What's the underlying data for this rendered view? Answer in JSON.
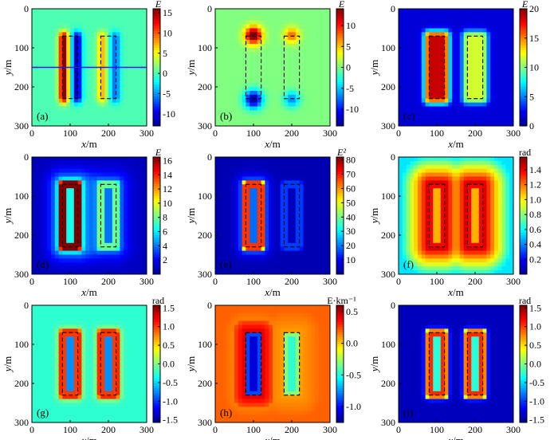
{
  "figure": {
    "colors": {
      "jet": [
        "#00008f",
        "#0000ff",
        "#0080ff",
        "#00ffff",
        "#80ff80",
        "#ffff00",
        "#ff8000",
        "#ff0000",
        "#800000"
      ],
      "frame": "#000000",
      "profile_line": "#1a1aff"
    }
  },
  "chart_data": [
    {
      "type": "heatmap",
      "panel": "a",
      "tag": "(a)",
      "field": "E",
      "xlabel_main": "x",
      "xlabel_unit": "/m",
      "ylabel_main": "y",
      "ylabel_unit": "/m",
      "xlim": [
        0,
        300
      ],
      "ylim": [
        0,
        300
      ],
      "y_inverted": true,
      "xticks": [
        0,
        100,
        200,
        300
      ],
      "yticks": [
        0,
        100,
        200,
        300
      ],
      "colorbar": {
        "title": "E",
        "range": [
          -13,
          16
        ],
        "ticks": [
          15,
          10,
          5,
          0,
          -5,
          -10
        ]
      },
      "bodies": [
        {
          "x": [
            80,
            120
          ],
          "y": [
            70,
            230
          ],
          "outline": "dashed"
        },
        {
          "x": [
            180,
            220
          ],
          "y": [
            70,
            230
          ],
          "outline": "dashed"
        }
      ],
      "profile_line_y": 150
    },
    {
      "type": "heatmap",
      "panel": "b",
      "tag": "(b)",
      "field": "E",
      "xlabel_main": "x",
      "xlabel_unit": "/m",
      "ylabel_main": "y",
      "ylabel_unit": "/m",
      "xlim": [
        0,
        300
      ],
      "ylim": [
        0,
        300
      ],
      "y_inverted": true,
      "xticks": [
        0,
        100,
        200,
        300
      ],
      "yticks": [
        0,
        100,
        200,
        300
      ],
      "colorbar": {
        "title": "E",
        "range": [
          -14,
          14
        ],
        "ticks": [
          10,
          5,
          0,
          -5,
          -10
        ]
      },
      "bodies": [
        {
          "x": [
            80,
            120
          ],
          "y": [
            70,
            230
          ],
          "outline": "dashed"
        },
        {
          "x": [
            180,
            220
          ],
          "y": [
            70,
            230
          ],
          "outline": "dashed"
        }
      ]
    },
    {
      "type": "heatmap",
      "panel": "c",
      "tag": "(c)",
      "field": "E",
      "xlabel_main": "x",
      "xlabel_unit": "/m",
      "ylabel_main": "y",
      "ylabel_unit": "/m",
      "xlim": [
        0,
        300
      ],
      "ylim": [
        0,
        300
      ],
      "y_inverted": true,
      "xticks": [
        0,
        100,
        200,
        300
      ],
      "yticks": [
        0,
        100,
        200,
        300
      ],
      "colorbar": {
        "title": "E",
        "range": [
          0,
          20
        ],
        "ticks": [
          20,
          15,
          10,
          5,
          0
        ]
      },
      "bodies": [
        {
          "x": [
            80,
            120
          ],
          "y": [
            70,
            230
          ],
          "outline": "dashed"
        },
        {
          "x": [
            180,
            220
          ],
          "y": [
            70,
            230
          ],
          "outline": "dashed"
        }
      ]
    },
    {
      "type": "heatmap",
      "panel": "d",
      "tag": "(d)",
      "field": "E",
      "xlabel_main": "x",
      "xlabel_unit": "/m",
      "ylabel_main": "y",
      "ylabel_unit": "/m",
      "xlim": [
        0,
        300
      ],
      "ylim": [
        0,
        300
      ],
      "y_inverted": true,
      "xticks": [
        0,
        100,
        200,
        300
      ],
      "yticks": [
        0,
        100,
        200,
        300
      ],
      "colorbar": {
        "title": "E",
        "range": [
          0,
          16.5
        ],
        "ticks": [
          16,
          14,
          12,
          10,
          8,
          6,
          4,
          2
        ]
      },
      "bodies": [
        {
          "x": [
            80,
            120
          ],
          "y": [
            70,
            230
          ],
          "outline": "dashed"
        },
        {
          "x": [
            180,
            220
          ],
          "y": [
            70,
            230
          ],
          "outline": "dashed"
        }
      ]
    },
    {
      "type": "heatmap",
      "panel": "e",
      "tag": "(e)",
      "field": "E²",
      "xlabel_main": "x",
      "xlabel_unit": "/m",
      "ylabel_main": "y",
      "ylabel_unit": "/m",
      "xlim": [
        0,
        300
      ],
      "ylim": [
        0,
        300
      ],
      "y_inverted": true,
      "xticks": [
        0,
        100,
        200,
        300
      ],
      "yticks": [
        0,
        100,
        200,
        300
      ],
      "colorbar": {
        "title": "E²",
        "range": [
          0,
          82
        ],
        "ticks": [
          80,
          70,
          60,
          50,
          40,
          30,
          20,
          10
        ]
      },
      "bodies": [
        {
          "x": [
            80,
            120
          ],
          "y": [
            70,
            230
          ],
          "outline": "dashed"
        },
        {
          "x": [
            180,
            220
          ],
          "y": [
            70,
            230
          ],
          "outline": "dashed"
        }
      ]
    },
    {
      "type": "heatmap",
      "panel": "f",
      "tag": "(f)",
      "field": "rad",
      "xlabel_main": "x",
      "xlabel_unit": "/m",
      "ylabel_main": "y",
      "ylabel_unit": "/m",
      "xlim": [
        0,
        300
      ],
      "ylim": [
        0,
        300
      ],
      "y_inverted": true,
      "xticks": [
        0,
        100,
        200,
        300
      ],
      "yticks": [
        0,
        100,
        200,
        300
      ],
      "colorbar": {
        "title": "rad",
        "range": [
          0,
          1.57
        ],
        "ticks": [
          1.4,
          1.2,
          1.0,
          0.8,
          0.6,
          0.4,
          0.2
        ]
      },
      "bodies": [
        {
          "x": [
            80,
            120
          ],
          "y": [
            70,
            230
          ],
          "outline": "dashed"
        },
        {
          "x": [
            180,
            220
          ],
          "y": [
            70,
            230
          ],
          "outline": "dashed"
        }
      ]
    },
    {
      "type": "heatmap",
      "panel": "g",
      "tag": "(g)",
      "field": "rad",
      "xlabel_main": "x",
      "xlabel_unit": "/m",
      "ylabel_main": "y",
      "ylabel_unit": "/m",
      "xlim": [
        0,
        300
      ],
      "ylim": [
        0,
        300
      ],
      "y_inverted": true,
      "xticks": [
        0,
        100,
        200,
        300
      ],
      "yticks": [
        0,
        100,
        200,
        300
      ],
      "colorbar": {
        "title": "rad",
        "range": [
          -1.57,
          1.57
        ],
        "ticks": [
          1.5,
          1.0,
          0.5,
          0.0,
          -0.5,
          -1.0,
          -1.5
        ]
      },
      "bodies": [
        {
          "x": [
            80,
            120
          ],
          "y": [
            70,
            230
          ],
          "outline": "dashed"
        },
        {
          "x": [
            180,
            220
          ],
          "y": [
            70,
            230
          ],
          "outline": "dashed"
        }
      ]
    },
    {
      "type": "heatmap",
      "panel": "h",
      "tag": "(h)",
      "field": "E·km⁻¹",
      "xlabel_main": "x",
      "xlabel_unit": "/m",
      "ylabel_main": "y",
      "ylabel_unit": "/m",
      "xlim": [
        0,
        300
      ],
      "ylim": [
        0,
        300
      ],
      "y_inverted": true,
      "xticks": [
        0,
        100,
        200,
        300
      ],
      "yticks": [
        0,
        100,
        200,
        300
      ],
      "colorbar": {
        "title": "E·km⁻¹",
        "range": [
          -1.25,
          0.6
        ],
        "ticks": [
          0.5,
          0.0,
          -0.5,
          -1.0
        ]
      },
      "bodies": [
        {
          "x": [
            80,
            120
          ],
          "y": [
            70,
            230
          ],
          "outline": "dashed"
        },
        {
          "x": [
            180,
            220
          ],
          "y": [
            70,
            230
          ],
          "outline": "dashed"
        }
      ]
    },
    {
      "type": "heatmap",
      "panel": "i",
      "tag": "(i)",
      "field": "rad",
      "xlabel_main": "x",
      "xlabel_unit": "/m",
      "ylabel_main": "y",
      "ylabel_unit": "/m",
      "xlim": [
        0,
        300
      ],
      "ylim": [
        0,
        300
      ],
      "y_inverted": true,
      "xticks": [
        0,
        100,
        200,
        300
      ],
      "yticks": [
        0,
        100,
        200,
        300
      ],
      "colorbar": {
        "title": "rad",
        "range": [
          -1.57,
          1.57
        ],
        "ticks": [
          1.5,
          1.0,
          0.5,
          0.0,
          -0.5,
          -1.0,
          -1.5
        ]
      },
      "bodies": [
        {
          "x": [
            80,
            120
          ],
          "y": [
            70,
            230
          ],
          "outline": "dashed"
        },
        {
          "x": [
            180,
            220
          ],
          "y": [
            70,
            230
          ],
          "outline": "dashed"
        }
      ]
    }
  ]
}
